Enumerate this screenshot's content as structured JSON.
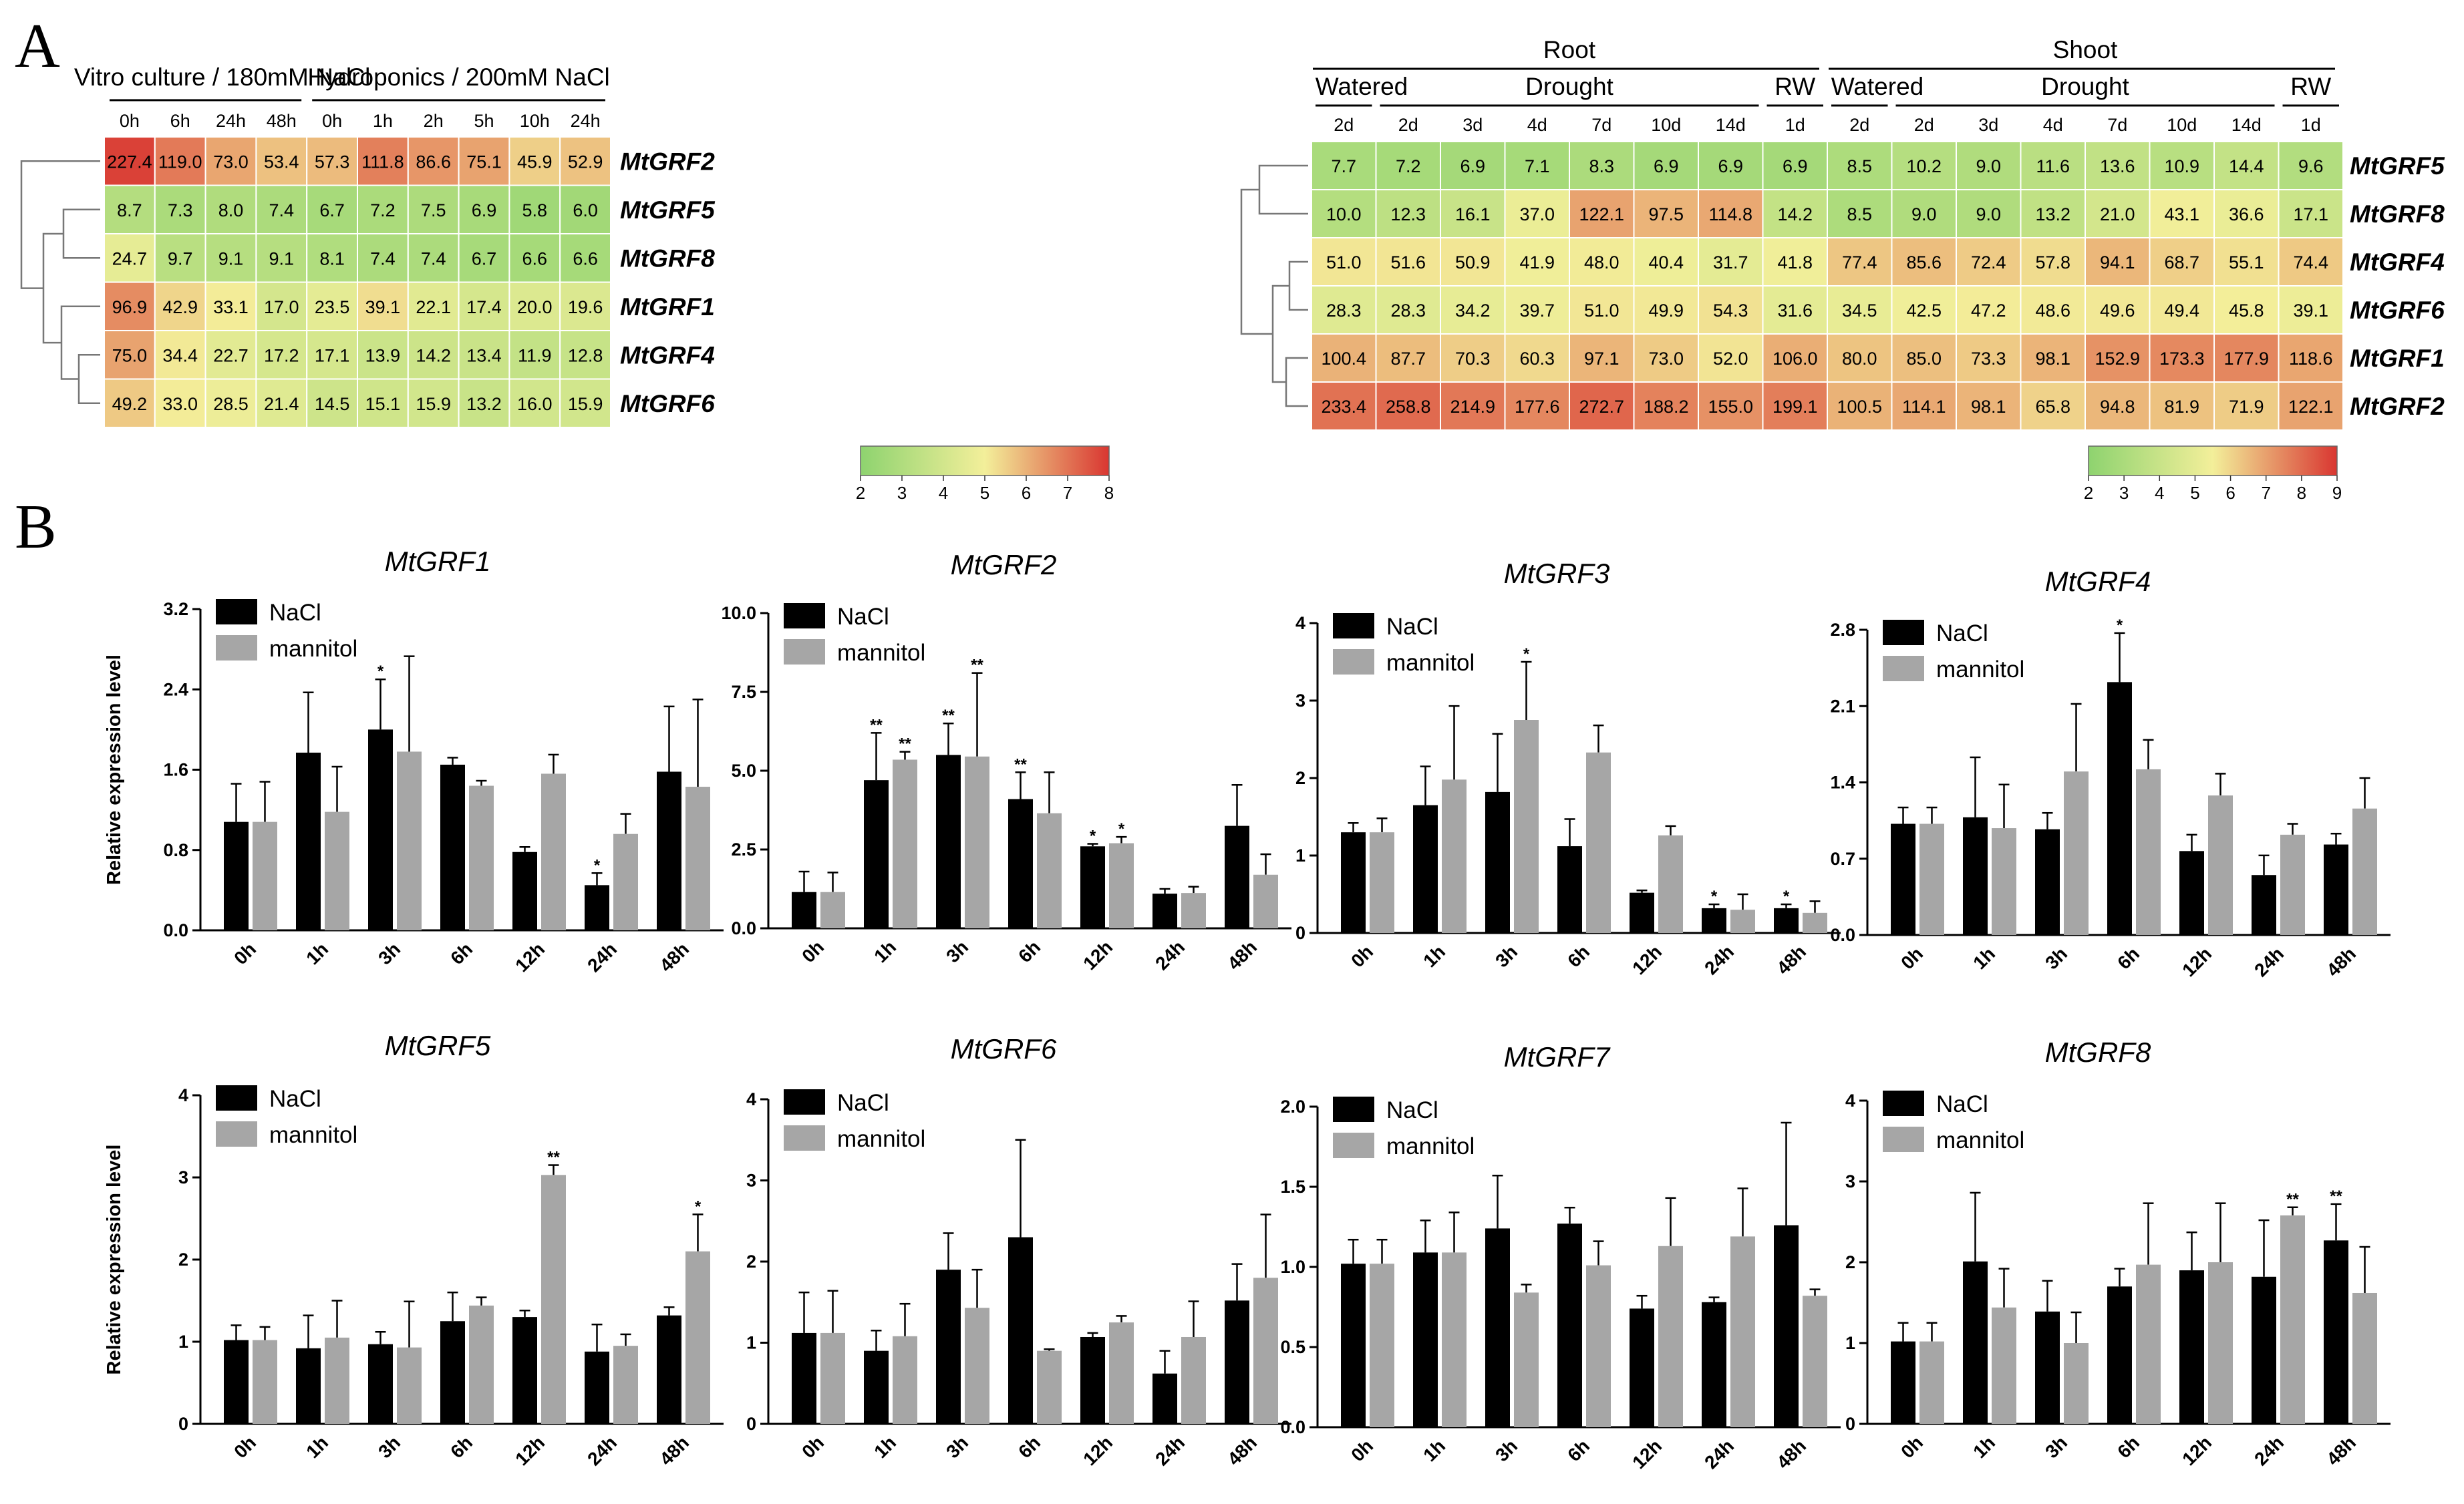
{
  "panels": {
    "a": "A",
    "b": "B"
  },
  "colors": {
    "low": "#8ed36f",
    "mid": "#f3ef9a",
    "high": "#d93631",
    "nacl": "#000000",
    "mannitol": "#a6a6a6"
  },
  "chart_data": [
    {
      "type": "heatmap",
      "id": "heatmap-left",
      "groups": [
        {
          "label": "Vitro culture / 180mM NaCl",
          "columns": [
            "0h",
            "6h",
            "24h",
            "48h"
          ]
        },
        {
          "label": "Hydroponics / 200mM NaCl",
          "columns": [
            "0h",
            "1h",
            "2h",
            "5h",
            "10h",
            "24h"
          ]
        }
      ],
      "columns": [
        "0h",
        "6h",
        "24h",
        "48h",
        "0h",
        "1h",
        "2h",
        "5h",
        "10h",
        "24h"
      ],
      "rows": [
        "MtGRF2",
        "MtGRF5",
        "MtGRF8",
        "MtGRF1",
        "MtGRF4",
        "MtGRF6"
      ],
      "values": [
        [
          227.4,
          119.0,
          73.0,
          53.4,
          57.3,
          111.8,
          86.6,
          75.1,
          45.9,
          52.9
        ],
        [
          8.7,
          7.3,
          8.0,
          7.4,
          6.7,
          7.2,
          7.5,
          6.9,
          5.8,
          6.0
        ],
        [
          24.7,
          9.7,
          9.1,
          9.1,
          8.1,
          7.4,
          7.4,
          6.7,
          6.6,
          6.6
        ],
        [
          96.9,
          42.9,
          33.1,
          17.0,
          23.5,
          39.1,
          22.1,
          17.4,
          20.0,
          19.6
        ],
        [
          75.0,
          34.4,
          22.7,
          17.2,
          17.1,
          13.9,
          14.2,
          13.4,
          11.9,
          12.8
        ],
        [
          49.2,
          33.0,
          28.5,
          21.4,
          14.5,
          15.1,
          15.9,
          13.2,
          16.0,
          15.9
        ]
      ],
      "colorbar": {
        "min": 2,
        "max": 8,
        "ticks": [
          "2",
          "3",
          "4",
          "5",
          "6",
          "7",
          "8"
        ]
      }
    },
    {
      "type": "heatmap",
      "id": "heatmap-right",
      "tissues": [
        "Root",
        "Shoot"
      ],
      "conditions": [
        "Watered",
        "Drought",
        "RW"
      ],
      "columns": [
        "2d",
        "2d",
        "3d",
        "4d",
        "7d",
        "10d",
        "14d",
        "1d",
        "2d",
        "2d",
        "3d",
        "4d",
        "7d",
        "10d",
        "14d",
        "1d"
      ],
      "rows": [
        "MtGRF5",
        "MtGRF8",
        "MtGRF4",
        "MtGRF6",
        "MtGRF1",
        "MtGRF2"
      ],
      "values": [
        [
          7.7,
          7.2,
          6.9,
          7.1,
          8.3,
          6.9,
          6.9,
          6.9,
          8.5,
          10.2,
          9.0,
          11.6,
          13.6,
          10.9,
          14.4,
          9.6
        ],
        [
          10.0,
          12.3,
          16.1,
          37.0,
          122.1,
          97.5,
          114.8,
          14.2,
          8.5,
          9.0,
          9.0,
          13.2,
          21.0,
          43.1,
          36.6,
          17.1
        ],
        [
          51.0,
          51.6,
          50.9,
          41.9,
          48.0,
          40.4,
          31.7,
          41.8,
          77.4,
          85.6,
          72.4,
          57.8,
          94.1,
          68.7,
          55.1,
          74.4
        ],
        [
          28.3,
          28.3,
          34.2,
          39.7,
          51.0,
          49.9,
          54.3,
          31.6,
          34.5,
          42.5,
          47.2,
          48.6,
          49.6,
          49.4,
          45.8,
          39.1
        ],
        [
          100.4,
          87.7,
          70.3,
          60.3,
          97.1,
          73.0,
          52.0,
          106.0,
          80.0,
          85.0,
          73.3,
          98.1,
          152.9,
          173.3,
          177.9,
          118.6
        ],
        [
          233.4,
          258.8,
          214.9,
          177.6,
          272.7,
          188.2,
          155.0,
          199.1,
          100.5,
          114.1,
          98.1,
          65.8,
          94.8,
          81.9,
          71.9,
          122.1
        ]
      ],
      "colorbar": {
        "min": 2,
        "max": 9,
        "ticks": [
          "2",
          "3",
          "4",
          "5",
          "6",
          "7",
          "8",
          "9"
        ]
      }
    },
    {
      "type": "bar",
      "gene": "MtGRF1",
      "categories": [
        "0h",
        "1h",
        "3h",
        "6h",
        "12h",
        "24h",
        "48h"
      ],
      "ylabel": "Relative expression level",
      "ylim": [
        0,
        3.2
      ],
      "yticks": [
        "0.0",
        "0.8",
        "1.6",
        "2.4",
        "3.2"
      ],
      "series": [
        {
          "name": "NaCl",
          "values": [
            1.08,
            1.77,
            2.0,
            1.65,
            0.78,
            0.45,
            1.58
          ],
          "errors": [
            0.38,
            0.6,
            0.5,
            0.07,
            0.05,
            0.12,
            0.65
          ]
        },
        {
          "name": "mannitol",
          "values": [
            1.08,
            1.18,
            1.78,
            1.44,
            1.56,
            0.96,
            1.43
          ],
          "errors": [
            0.4,
            0.45,
            0.95,
            0.05,
            0.19,
            0.2,
            0.87
          ]
        }
      ],
      "annotations": [
        {
          "series": "NaCl",
          "index": 2,
          "text": "*"
        },
        {
          "series": "NaCl",
          "index": 5,
          "text": "*"
        }
      ]
    },
    {
      "type": "bar",
      "gene": "MtGRF2",
      "categories": [
        "0h",
        "1h",
        "3h",
        "6h",
        "12h",
        "24h",
        "48h"
      ],
      "ylabel": "",
      "ylim": [
        0,
        10
      ],
      "yticks": [
        "0.0",
        "2.5",
        "5.0",
        "7.5",
        "10.0"
      ],
      "series": [
        {
          "name": "NaCl",
          "values": [
            1.15,
            4.7,
            5.5,
            4.1,
            2.6,
            1.1,
            3.25
          ],
          "errors": [
            0.65,
            1.5,
            1.0,
            0.85,
            0.08,
            0.15,
            1.3
          ]
        },
        {
          "name": "mannitol",
          "values": [
            1.15,
            5.35,
            5.45,
            3.65,
            2.7,
            1.12,
            1.7
          ],
          "errors": [
            0.62,
            0.25,
            2.65,
            1.3,
            0.2,
            0.2,
            0.65
          ]
        }
      ],
      "annotations": [
        {
          "series": "NaCl",
          "index": 1,
          "text": "**"
        },
        {
          "series": "mannitol",
          "index": 1,
          "text": "**"
        },
        {
          "series": "NaCl",
          "index": 2,
          "text": "**"
        },
        {
          "series": "mannitol",
          "index": 2,
          "text": "**"
        },
        {
          "series": "NaCl",
          "index": 3,
          "text": "**"
        },
        {
          "series": "NaCl",
          "index": 4,
          "text": "*"
        },
        {
          "series": "mannitol",
          "index": 4,
          "text": "*"
        }
      ]
    },
    {
      "type": "bar",
      "gene": "MtGRF3",
      "categories": [
        "0h",
        "1h",
        "3h",
        "6h",
        "12h",
        "24h",
        "48h"
      ],
      "ylabel": "",
      "ylim": [
        0,
        4
      ],
      "yticks": [
        "0",
        "1",
        "2",
        "3",
        "4"
      ],
      "series": [
        {
          "name": "NaCl",
          "values": [
            1.3,
            1.65,
            1.82,
            1.12,
            0.52,
            0.32,
            0.32
          ],
          "errors": [
            0.12,
            0.5,
            0.75,
            0.35,
            0.03,
            0.05,
            0.05
          ]
        },
        {
          "name": "mannitol",
          "values": [
            1.3,
            1.98,
            2.75,
            2.33,
            1.26,
            0.3,
            0.26
          ],
          "errors": [
            0.18,
            0.95,
            0.75,
            0.35,
            0.12,
            0.2,
            0.15
          ]
        }
      ],
      "annotations": [
        {
          "series": "mannitol",
          "index": 2,
          "text": "*"
        },
        {
          "series": "NaCl",
          "index": 5,
          "text": "*"
        },
        {
          "series": "NaCl",
          "index": 6,
          "text": "*"
        }
      ]
    },
    {
      "type": "bar",
      "gene": "MtGRF4",
      "categories": [
        "0h",
        "1h",
        "3h",
        "6h",
        "12h",
        "24h",
        "48h"
      ],
      "ylabel": "",
      "ylim": [
        0,
        2.8
      ],
      "yticks": [
        "0.0",
        "0.7",
        "1.4",
        "2.1",
        "2.8"
      ],
      "series": [
        {
          "name": "NaCl",
          "values": [
            1.02,
            1.08,
            0.97,
            2.32,
            0.77,
            0.55,
            0.83
          ],
          "errors": [
            0.15,
            0.55,
            0.15,
            0.45,
            0.15,
            0.18,
            0.1
          ]
        },
        {
          "name": "mannitol",
          "values": [
            1.02,
            0.98,
            1.5,
            1.52,
            1.28,
            0.92,
            1.16
          ],
          "errors": [
            0.15,
            0.4,
            0.62,
            0.27,
            0.2,
            0.1,
            0.28
          ]
        }
      ],
      "annotations": [
        {
          "series": "NaCl",
          "index": 3,
          "text": "*"
        }
      ]
    },
    {
      "type": "bar",
      "gene": "MtGRF5",
      "categories": [
        "0h",
        "1h",
        "3h",
        "6h",
        "12h",
        "24h",
        "48h"
      ],
      "ylabel": "Relative expression level",
      "ylim": [
        0,
        4
      ],
      "yticks": [
        "0",
        "1",
        "2",
        "3",
        "4"
      ],
      "series": [
        {
          "name": "NaCl",
          "values": [
            1.02,
            0.92,
            0.97,
            1.25,
            1.3,
            0.88,
            1.32
          ],
          "errors": [
            0.18,
            0.4,
            0.15,
            0.35,
            0.08,
            0.33,
            0.1
          ]
        },
        {
          "name": "mannitol",
          "values": [
            1.02,
            1.05,
            0.93,
            1.44,
            3.03,
            0.95,
            2.1
          ],
          "errors": [
            0.16,
            0.45,
            0.56,
            0.1,
            0.12,
            0.14,
            0.45
          ]
        }
      ],
      "annotations": [
        {
          "series": "mannitol",
          "index": 4,
          "text": "**"
        },
        {
          "series": "mannitol",
          "index": 6,
          "text": "*"
        }
      ]
    },
    {
      "type": "bar",
      "gene": "MtGRF6",
      "categories": [
        "0h",
        "1h",
        "3h",
        "6h",
        "12h",
        "24h",
        "48h"
      ],
      "ylabel": "",
      "ylim": [
        0,
        4
      ],
      "yticks": [
        "0",
        "1",
        "2",
        "3",
        "4"
      ],
      "series": [
        {
          "name": "NaCl",
          "values": [
            1.12,
            0.9,
            1.9,
            2.3,
            1.07,
            0.62,
            1.52
          ],
          "errors": [
            0.5,
            0.25,
            0.45,
            1.2,
            0.05,
            0.28,
            0.45
          ]
        },
        {
          "name": "mannitol",
          "values": [
            1.12,
            1.08,
            1.43,
            0.9,
            1.25,
            1.07,
            1.8
          ],
          "errors": [
            0.52,
            0.4,
            0.47,
            0.02,
            0.08,
            0.44,
            0.78
          ]
        }
      ],
      "annotations": []
    },
    {
      "type": "bar",
      "gene": "MtGRF7",
      "categories": [
        "0h",
        "1h",
        "3h",
        "6h",
        "12h",
        "24h",
        "48h"
      ],
      "ylabel": "",
      "ylim": [
        0,
        2.0
      ],
      "yticks": [
        "0.0",
        "0.5",
        "1.0",
        "1.5",
        "2.0"
      ],
      "series": [
        {
          "name": "NaCl",
          "values": [
            1.02,
            1.09,
            1.24,
            1.27,
            0.74,
            0.78,
            1.26
          ],
          "errors": [
            0.15,
            0.2,
            0.33,
            0.1,
            0.08,
            0.03,
            0.64
          ]
        },
        {
          "name": "mannitol",
          "values": [
            1.02,
            1.09,
            0.84,
            1.01,
            1.13,
            1.19,
            0.82
          ],
          "errors": [
            0.15,
            0.25,
            0.05,
            0.15,
            0.3,
            0.3,
            0.04
          ]
        }
      ],
      "annotations": []
    },
    {
      "type": "bar",
      "gene": "MtGRF8",
      "categories": [
        "0h",
        "1h",
        "3h",
        "6h",
        "12h",
        "24h",
        "48h"
      ],
      "ylabel": "",
      "ylim": [
        0,
        4
      ],
      "yticks": [
        "0",
        "1",
        "2",
        "3",
        "4"
      ],
      "series": [
        {
          "name": "NaCl",
          "values": [
            1.02,
            2.01,
            1.39,
            1.7,
            1.9,
            1.82,
            2.27
          ],
          "errors": [
            0.23,
            0.85,
            0.38,
            0.22,
            0.47,
            0.7,
            0.45
          ]
        },
        {
          "name": "mannitol",
          "values": [
            1.02,
            1.44,
            1.0,
            1.97,
            2.0,
            2.58,
            1.62
          ],
          "errors": [
            0.23,
            0.48,
            0.38,
            0.76,
            0.73,
            0.1,
            0.57
          ]
        }
      ],
      "annotations": [
        {
          "series": "mannitol",
          "index": 5,
          "text": "**"
        },
        {
          "series": "NaCl",
          "index": 6,
          "text": "**"
        }
      ]
    }
  ]
}
